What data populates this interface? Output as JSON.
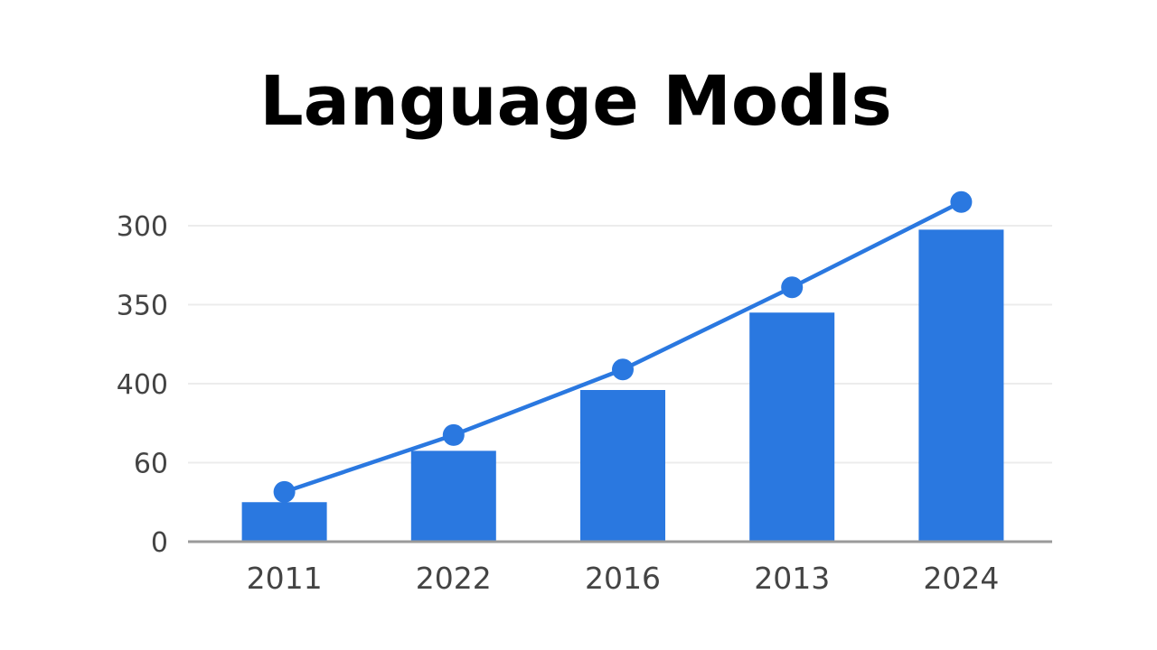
{
  "chart_data": {
    "type": "bar",
    "title": "Language Modls",
    "xlabel": "",
    "ylabel": "",
    "categories": [
      "2011",
      "2022",
      "2016",
      "2013",
      "2024"
    ],
    "y_tick_labels": [
      "0",
      "60",
      "400",
      "350",
      "300"
    ],
    "series": [
      {
        "values": [
          0.5,
          1.15,
          1.92,
          2.9,
          3.95
        ]
      },
      {
        "values": [
          0.63,
          1.35,
          2.18,
          3.22,
          4.3
        ]
      }
    ],
    "y_tick_values": [
      0,
      1,
      2,
      3,
      4
    ],
    "ylim": [
      0,
      4.3
    ],
    "grid": true,
    "legend": "none",
    "colors": {
      "bar": "#2a78e0",
      "line": "#2a78e0",
      "grid": "#ececec",
      "axis": "#9a9a9a",
      "title": "#000000",
      "tick": "#444444"
    }
  }
}
